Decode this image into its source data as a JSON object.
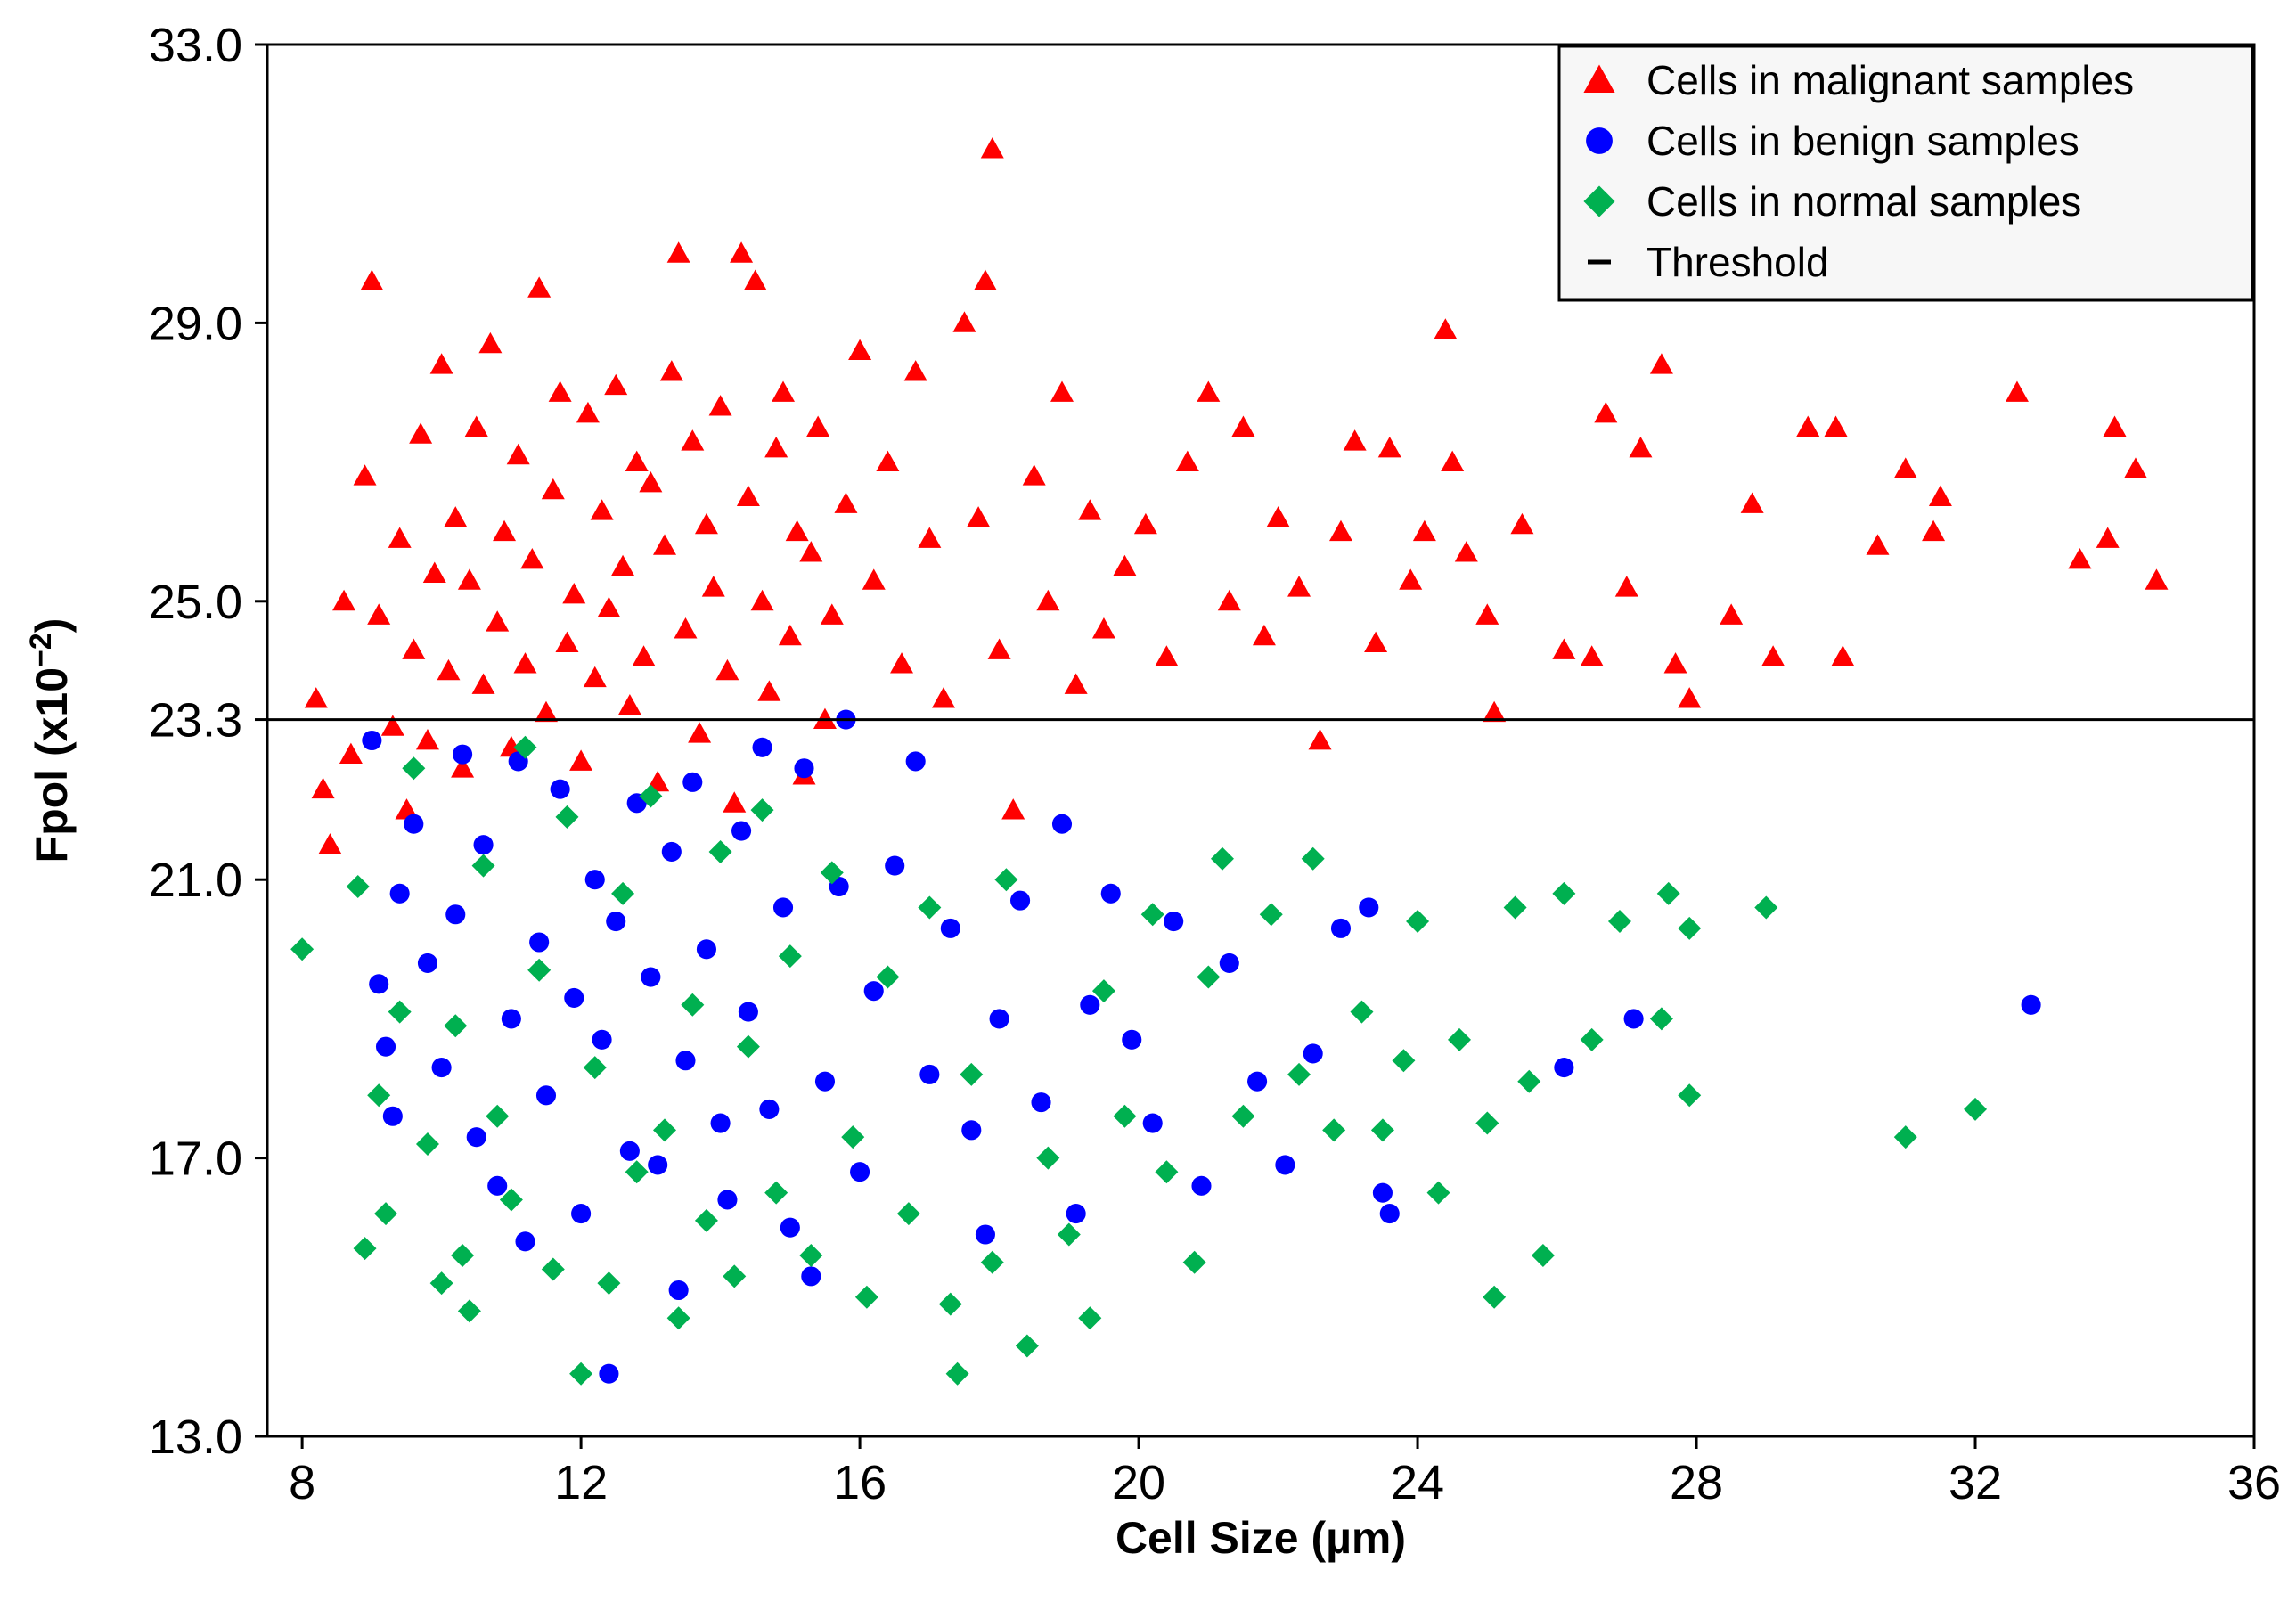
{
  "chart_data": {
    "type": "scatter",
    "title": "",
    "xlabel": "Cell Size (µm)",
    "ylabel": "Fpol (x10",
    "ylabel_exponent": "−2",
    "ylabel_close": ")",
    "xlim": [
      7.5,
      36
    ],
    "ylim": [
      13,
      33
    ],
    "x_ticks": [
      8,
      12,
      16,
      20,
      24,
      28,
      32,
      36
    ],
    "x_tick_labels": [
      "8",
      "12",
      "16",
      "20",
      "24",
      "28",
      "32",
      "36"
    ],
    "y_ticks": [
      13,
      17,
      21,
      23.3,
      25,
      29,
      33
    ],
    "y_tick_labels": [
      "13.0",
      "17.0",
      "21.0",
      "23.3",
      "25.0",
      "29.0",
      "33.0"
    ],
    "threshold": {
      "name": "Threshold",
      "y": 23.3,
      "color": "#000000"
    },
    "legend_position": "top-right",
    "series": [
      {
        "name": "Cells in malignant samples",
        "marker": "triangle",
        "color": "#ff0000",
        "points": [
          [
            8.2,
            23.6
          ],
          [
            8.3,
            22.3
          ],
          [
            8.4,
            21.5
          ],
          [
            8.6,
            25.0
          ],
          [
            8.7,
            22.8
          ],
          [
            8.9,
            26.8
          ],
          [
            9.0,
            29.6
          ],
          [
            9.1,
            24.8
          ],
          [
            9.3,
            23.2
          ],
          [
            9.4,
            25.9
          ],
          [
            9.5,
            22.0
          ],
          [
            9.6,
            24.3
          ],
          [
            9.7,
            27.4
          ],
          [
            9.8,
            23.0
          ],
          [
            9.9,
            25.4
          ],
          [
            10.0,
            28.4
          ],
          [
            10.1,
            24.0
          ],
          [
            10.2,
            26.2
          ],
          [
            10.3,
            22.6
          ],
          [
            10.4,
            25.3
          ],
          [
            10.5,
            27.5
          ],
          [
            10.6,
            23.8
          ],
          [
            10.7,
            28.7
          ],
          [
            10.8,
            24.7
          ],
          [
            10.9,
            26.0
          ],
          [
            11.0,
            22.9
          ],
          [
            11.1,
            27.1
          ],
          [
            11.2,
            24.1
          ],
          [
            11.3,
            25.6
          ],
          [
            11.4,
            29.5
          ],
          [
            11.5,
            23.4
          ],
          [
            11.6,
            26.6
          ],
          [
            11.7,
            28.0
          ],
          [
            11.8,
            24.4
          ],
          [
            11.9,
            25.1
          ],
          [
            12.0,
            22.7
          ],
          [
            12.1,
            27.7
          ],
          [
            12.2,
            23.9
          ],
          [
            12.3,
            26.3
          ],
          [
            12.4,
            24.9
          ],
          [
            12.5,
            28.1
          ],
          [
            12.6,
            25.5
          ],
          [
            12.7,
            23.5
          ],
          [
            12.8,
            27.0
          ],
          [
            12.9,
            24.2
          ],
          [
            13.0,
            26.7
          ],
          [
            13.1,
            22.4
          ],
          [
            13.2,
            25.8
          ],
          [
            13.3,
            28.3
          ],
          [
            13.4,
            30.0
          ],
          [
            13.5,
            24.6
          ],
          [
            13.6,
            27.3
          ],
          [
            13.7,
            23.1
          ],
          [
            13.8,
            26.1
          ],
          [
            13.9,
            25.2
          ],
          [
            14.0,
            27.8
          ],
          [
            14.1,
            24.0
          ],
          [
            14.2,
            22.1
          ],
          [
            14.3,
            30.0
          ],
          [
            14.4,
            26.5
          ],
          [
            14.5,
            29.6
          ],
          [
            14.6,
            25.0
          ],
          [
            14.7,
            23.7
          ],
          [
            14.8,
            27.2
          ],
          [
            14.9,
            28.0
          ],
          [
            15.0,
            24.5
          ],
          [
            15.1,
            26.0
          ],
          [
            15.2,
            22.5
          ],
          [
            15.3,
            25.7
          ],
          [
            15.4,
            27.5
          ],
          [
            15.5,
            23.3
          ],
          [
            15.6,
            24.8
          ],
          [
            15.8,
            26.4
          ],
          [
            16.0,
            28.6
          ],
          [
            16.2,
            25.3
          ],
          [
            16.4,
            27.0
          ],
          [
            16.6,
            24.1
          ],
          [
            16.8,
            28.3
          ],
          [
            17.0,
            25.9
          ],
          [
            17.2,
            23.6
          ],
          [
            17.5,
            29.0
          ],
          [
            17.7,
            26.2
          ],
          [
            17.8,
            29.6
          ],
          [
            17.9,
            31.5
          ],
          [
            18.0,
            24.3
          ],
          [
            18.2,
            22.0
          ],
          [
            18.5,
            26.8
          ],
          [
            18.7,
            25.0
          ],
          [
            18.9,
            28.0
          ],
          [
            19.1,
            23.8
          ],
          [
            19.3,
            26.3
          ],
          [
            19.5,
            24.6
          ],
          [
            19.8,
            25.5
          ],
          [
            20.1,
            26.1
          ],
          [
            20.4,
            24.2
          ],
          [
            20.7,
            27.0
          ],
          [
            21.0,
            28.0
          ],
          [
            21.3,
            25.0
          ],
          [
            21.5,
            27.5
          ],
          [
            21.8,
            24.5
          ],
          [
            22.0,
            26.2
          ],
          [
            22.3,
            25.2
          ],
          [
            22.6,
            23.0
          ],
          [
            22.9,
            26.0
          ],
          [
            23.1,
            27.3
          ],
          [
            23.4,
            24.4
          ],
          [
            23.6,
            27.2
          ],
          [
            23.9,
            25.3
          ],
          [
            24.1,
            26.0
          ],
          [
            24.4,
            28.9
          ],
          [
            24.5,
            27.0
          ],
          [
            24.7,
            25.7
          ],
          [
            25.0,
            24.8
          ],
          [
            25.1,
            23.4
          ],
          [
            25.5,
            26.1
          ],
          [
            26.1,
            24.3
          ],
          [
            26.5,
            24.2
          ],
          [
            26.7,
            27.7
          ],
          [
            27.0,
            25.2
          ],
          [
            27.2,
            27.2
          ],
          [
            27.5,
            28.4
          ],
          [
            27.7,
            24.1
          ],
          [
            27.9,
            23.6
          ],
          [
            28.5,
            24.8
          ],
          [
            28.8,
            26.4
          ],
          [
            29.1,
            24.2
          ],
          [
            29.6,
            27.5
          ],
          [
            30.0,
            27.5
          ],
          [
            30.1,
            24.2
          ],
          [
            30.6,
            25.8
          ],
          [
            31.0,
            26.9
          ],
          [
            31.4,
            26.0
          ],
          [
            31.5,
            26.5
          ],
          [
            32.6,
            28.0
          ],
          [
            33.5,
            25.6
          ],
          [
            33.9,
            25.9
          ],
          [
            34.0,
            27.5
          ],
          [
            34.3,
            26.9
          ],
          [
            34.6,
            25.3
          ]
        ]
      },
      {
        "name": "Cells in benign samples",
        "marker": "circle",
        "color": "#0000ff",
        "points": [
          [
            9.0,
            23.0
          ],
          [
            9.1,
            19.5
          ],
          [
            9.2,
            18.6
          ],
          [
            9.3,
            17.6
          ],
          [
            9.4,
            20.8
          ],
          [
            9.6,
            21.8
          ],
          [
            9.8,
            19.8
          ],
          [
            10.0,
            18.3
          ],
          [
            10.2,
            20.5
          ],
          [
            10.3,
            22.8
          ],
          [
            10.5,
            17.3
          ],
          [
            10.6,
            21.5
          ],
          [
            10.8,
            16.6
          ],
          [
            11.0,
            19.0
          ],
          [
            11.1,
            22.7
          ],
          [
            11.2,
            15.8
          ],
          [
            11.4,
            20.1
          ],
          [
            11.5,
            17.9
          ],
          [
            11.7,
            22.3
          ],
          [
            11.9,
            19.3
          ],
          [
            12.0,
            16.2
          ],
          [
            12.2,
            21.0
          ],
          [
            12.3,
            18.7
          ],
          [
            12.4,
            13.9
          ],
          [
            12.5,
            20.4
          ],
          [
            12.7,
            17.1
          ],
          [
            12.8,
            22.1
          ],
          [
            13.0,
            19.6
          ],
          [
            13.1,
            16.9
          ],
          [
            13.3,
            21.4
          ],
          [
            13.4,
            15.1
          ],
          [
            13.5,
            18.4
          ],
          [
            13.6,
            22.4
          ],
          [
            13.8,
            20.0
          ],
          [
            14.0,
            17.5
          ],
          [
            14.1,
            16.4
          ],
          [
            14.3,
            21.7
          ],
          [
            14.4,
            19.1
          ],
          [
            14.6,
            22.9
          ],
          [
            14.7,
            17.7
          ],
          [
            14.9,
            20.6
          ],
          [
            15.0,
            16.0
          ],
          [
            15.2,
            22.6
          ],
          [
            15.3,
            15.3
          ],
          [
            15.5,
            18.1
          ],
          [
            15.7,
            20.9
          ],
          [
            15.8,
            23.3
          ],
          [
            16.0,
            16.8
          ],
          [
            16.2,
            19.4
          ],
          [
            16.5,
            21.2
          ],
          [
            16.8,
            22.7
          ],
          [
            17.0,
            18.2
          ],
          [
            17.3,
            20.3
          ],
          [
            17.6,
            17.4
          ],
          [
            17.8,
            15.9
          ],
          [
            18.0,
            19.0
          ],
          [
            18.3,
            20.7
          ],
          [
            18.6,
            17.8
          ],
          [
            18.9,
            21.8
          ],
          [
            19.1,
            16.2
          ],
          [
            19.3,
            19.2
          ],
          [
            19.6,
            20.8
          ],
          [
            19.9,
            18.7
          ],
          [
            20.2,
            17.5
          ],
          [
            20.5,
            20.4
          ],
          [
            20.9,
            16.6
          ],
          [
            21.3,
            19.8
          ],
          [
            21.7,
            18.1
          ],
          [
            22.1,
            16.9
          ],
          [
            22.5,
            18.5
          ],
          [
            22.9,
            20.3
          ],
          [
            23.3,
            20.6
          ],
          [
            23.5,
            16.5
          ],
          [
            23.6,
            16.2
          ],
          [
            26.1,
            18.3
          ],
          [
            27.1,
            19.0
          ],
          [
            32.8,
            19.2
          ]
        ]
      },
      {
        "name": "Cells in normal samples",
        "marker": "diamond",
        "color": "#00b050",
        "points": [
          [
            8.0,
            20.0
          ],
          [
            8.8,
            20.9
          ],
          [
            8.9,
            15.7
          ],
          [
            9.1,
            17.9
          ],
          [
            9.2,
            16.2
          ],
          [
            9.4,
            19.1
          ],
          [
            9.6,
            22.6
          ],
          [
            9.8,
            17.2
          ],
          [
            10.0,
            15.2
          ],
          [
            10.2,
            18.9
          ],
          [
            10.3,
            15.6
          ],
          [
            10.4,
            14.8
          ],
          [
            10.6,
            21.2
          ],
          [
            10.8,
            17.6
          ],
          [
            11.0,
            16.4
          ],
          [
            11.2,
            22.9
          ],
          [
            11.4,
            19.7
          ],
          [
            11.6,
            15.4
          ],
          [
            11.8,
            21.9
          ],
          [
            12.0,
            13.9
          ],
          [
            12.2,
            18.3
          ],
          [
            12.4,
            15.2
          ],
          [
            12.6,
            20.8
          ],
          [
            12.8,
            16.8
          ],
          [
            13.0,
            22.2
          ],
          [
            13.2,
            17.4
          ],
          [
            13.4,
            14.7
          ],
          [
            13.6,
            19.2
          ],
          [
            13.8,
            16.1
          ],
          [
            14.0,
            21.4
          ],
          [
            14.2,
            15.3
          ],
          [
            14.4,
            18.6
          ],
          [
            14.6,
            22.0
          ],
          [
            14.8,
            16.5
          ],
          [
            15.0,
            19.9
          ],
          [
            15.3,
            15.6
          ],
          [
            15.6,
            21.1
          ],
          [
            15.9,
            17.3
          ],
          [
            16.1,
            15.0
          ],
          [
            16.4,
            19.6
          ],
          [
            16.7,
            16.2
          ],
          [
            17.0,
            20.6
          ],
          [
            17.3,
            14.9
          ],
          [
            17.4,
            13.9
          ],
          [
            17.6,
            18.2
          ],
          [
            17.9,
            15.5
          ],
          [
            18.1,
            21.0
          ],
          [
            18.4,
            14.3
          ],
          [
            18.7,
            17.0
          ],
          [
            19.0,
            15.9
          ],
          [
            19.3,
            14.7
          ],
          [
            19.5,
            19.4
          ],
          [
            19.8,
            17.6
          ],
          [
            20.2,
            20.5
          ],
          [
            20.4,
            16.8
          ],
          [
            20.8,
            15.5
          ],
          [
            21.0,
            19.6
          ],
          [
            21.2,
            21.3
          ],
          [
            21.5,
            17.6
          ],
          [
            21.9,
            20.5
          ],
          [
            22.3,
            18.2
          ],
          [
            22.5,
            21.3
          ],
          [
            22.8,
            17.4
          ],
          [
            23.2,
            19.1
          ],
          [
            23.5,
            17.4
          ],
          [
            23.8,
            18.4
          ],
          [
            24.0,
            20.4
          ],
          [
            24.3,
            16.5
          ],
          [
            24.6,
            18.7
          ],
          [
            25.0,
            17.5
          ],
          [
            25.1,
            15.0
          ],
          [
            25.4,
            20.6
          ],
          [
            25.6,
            18.1
          ],
          [
            25.8,
            15.6
          ],
          [
            26.1,
            20.8
          ],
          [
            26.5,
            18.7
          ],
          [
            26.9,
            20.4
          ],
          [
            27.5,
            19.0
          ],
          [
            27.6,
            20.8
          ],
          [
            27.9,
            20.3
          ],
          [
            27.9,
            17.9
          ],
          [
            29.0,
            20.6
          ],
          [
            31.0,
            17.3
          ],
          [
            32.0,
            17.7
          ]
        ]
      }
    ]
  }
}
